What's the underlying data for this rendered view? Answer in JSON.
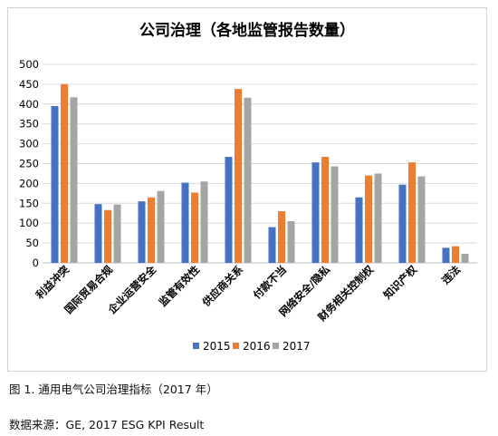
{
  "chart_data": {
    "type": "bar",
    "title": "公司治理（各地监管报告数量）",
    "categories": [
      "利益冲突",
      "国际贸易合规",
      "企业运营安全",
      "监管有效性",
      "供应商关系",
      "付款不当",
      "网络安全/隐私",
      "财务相关控制权",
      "知识产权",
      "违法"
    ],
    "series": [
      {
        "name": "2015",
        "color": "#4472C4",
        "values": [
          395,
          148,
          155,
          202,
          267,
          90,
          253,
          165,
          197,
          38
        ]
      },
      {
        "name": "2016",
        "color": "#ED7D31",
        "values": [
          450,
          133,
          165,
          177,
          438,
          130,
          267,
          220,
          253,
          42
        ]
      },
      {
        "name": "2017",
        "color": "#A5A5A5",
        "values": [
          417,
          147,
          181,
          205,
          416,
          105,
          243,
          225,
          218,
          23
        ]
      }
    ],
    "ylim": [
      0,
      500
    ],
    "yticks": [
      0,
      50,
      100,
      150,
      200,
      250,
      300,
      350,
      400,
      450,
      500
    ],
    "grid": true,
    "legend_position": "bottom"
  },
  "captions": {
    "figure": "图 1.  通用电气公司治理指标（2017 年）",
    "source": "数据来源：GE, 2017 ESG KPI Result"
  }
}
